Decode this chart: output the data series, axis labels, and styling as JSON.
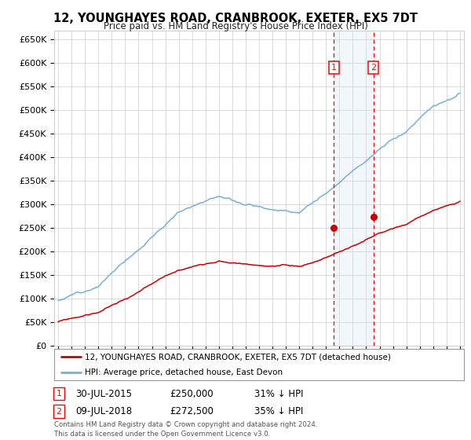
{
  "title": "12, YOUNGHAYES ROAD, CRANBROOK, EXETER, EX5 7DT",
  "subtitle": "Price paid vs. HM Land Registry's House Price Index (HPI)",
  "yticks": [
    0,
    50000,
    100000,
    150000,
    200000,
    250000,
    300000,
    350000,
    400000,
    450000,
    500000,
    550000,
    600000,
    650000
  ],
  "ytick_labels": [
    "£0",
    "£50K",
    "£100K",
    "£150K",
    "£200K",
    "£250K",
    "£300K",
    "£350K",
    "£400K",
    "£450K",
    "£500K",
    "£550K",
    "£600K",
    "£650K"
  ],
  "transaction1_date": "30-JUL-2015",
  "transaction1_price": 250000,
  "transaction1_pct": "31% ↓ HPI",
  "transaction2_date": "09-JUL-2018",
  "transaction2_price": 272500,
  "transaction2_pct": "35% ↓ HPI",
  "legend_label_red": "12, YOUNGHAYES ROAD, CRANBROOK, EXETER, EX5 7DT (detached house)",
  "legend_label_blue": "HPI: Average price, detached house, East Devon",
  "footer": "Contains HM Land Registry data © Crown copyright and database right 2024.\nThis data is licensed under the Open Government Licence v3.0.",
  "bg_color": "#ffffff",
  "grid_color": "#cccccc",
  "red_color": "#cc0000",
  "blue_color": "#7bafd4",
  "shade_color": "#cce0f0",
  "transaction1_x": 2015.58,
  "transaction2_x": 2018.53,
  "xlim_left": 1994.7,
  "xlim_right": 2025.3
}
